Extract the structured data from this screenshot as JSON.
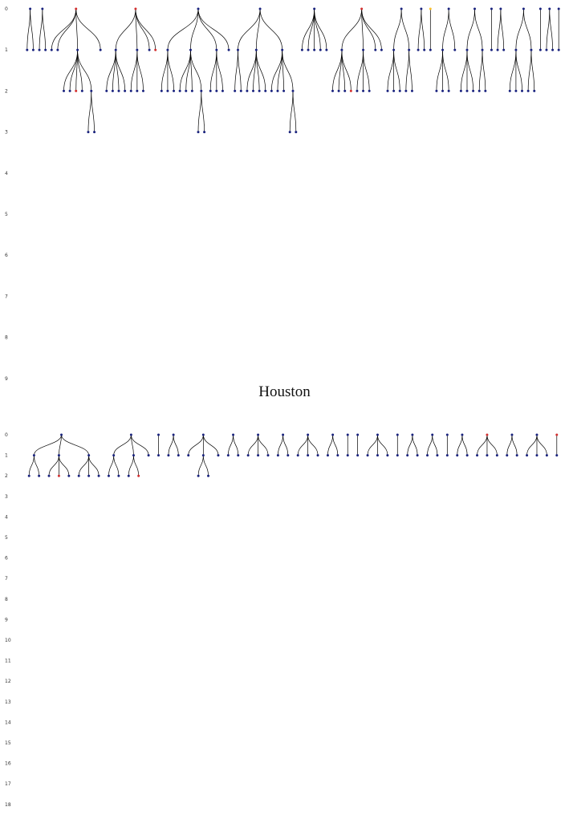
{
  "caption": "Houston",
  "colors": {
    "background": "#ffffff",
    "edge": "#000000",
    "node_default": "#1a237e",
    "node_red": "#d32f2f",
    "node_yellow": "#fbc02d",
    "node_green": "#2e7d32",
    "node_black": "#222222"
  },
  "top_panel": {
    "level_labels": [
      "0",
      "1",
      "2",
      "3",
      "4",
      "5",
      "6",
      "7",
      "8",
      "9"
    ],
    "trees": [
      {
        "c": [
          "n",
          [
            "n",
            "n"
          ]
        ]
      },
      {
        "c": [
          "n",
          [
            "n",
            "n"
          ]
        ]
      },
      {
        "c": [
          "r",
          [
            "n",
            "n",
            [
              "n",
              "n",
              "r",
              "n",
              [
                "n",
                "n"
              ]
            ],
            "n"
          ]
        ]
      },
      {
        "c": [
          "r",
          [
            [
              "n",
              "n",
              "n",
              "n"
            ],
            [
              "n",
              "n",
              "n"
            ],
            "n",
            "r"
          ]
        ]
      },
      {
        "c": [
          "n",
          [
            [
              "n",
              "n",
              "n"
            ],
            [
              "n",
              "n",
              "n",
              [
                "n",
                "n"
              ]
            ],
            [
              "n",
              [
                "n",
                "n",
                "n"
              ]
            ],
            "n"
          ]
        ]
      },
      {
        "c": [
          "n",
          [
            [
              "n",
              "n"
            ],
            [
              "n",
              "n",
              "n",
              "n"
            ],
            [
              "n",
              "n",
              "n",
              [
                "n",
                "n"
              ]
            ]
          ]
        ]
      },
      {
        "c": [
          "n",
          [
            "n",
            "n",
            "n",
            "n",
            "n"
          ]
        ]
      },
      {
        "c": [
          "r",
          [
            [
              "n",
              "n",
              "n",
              "r"
            ],
            [
              "n",
              "n",
              "n"
            ],
            "n",
            "n"
          ]
        ]
      },
      {
        "c": [
          "n",
          [
            [
              "n",
              "n",
              "n"
            ],
            [
              "n",
              "n"
            ]
          ]
        ]
      },
      {
        "c": [
          "n",
          [
            "n",
            "n"
          ]
        ]
      },
      {
        "c": [
          "y",
          [
            "n"
          ]
        ]
      },
      {
        "c": [
          "n",
          [
            [
              "n",
              "n",
              "n"
            ],
            "n"
          ]
        ]
      },
      {
        "c": [
          "n",
          [
            [
              "n",
              "n",
              "n"
            ],
            [
              "n",
              "n"
            ]
          ]
        ]
      },
      {
        "c": [
          "n",
          [
            "n"
          ]
        ]
      },
      {
        "c": [
          "n",
          [
            "n",
            "n"
          ]
        ]
      },
      {
        "c": [
          "n",
          [
            [
              "n",
              "n",
              "n"
            ],
            [
              "n",
              "n"
            ]
          ]
        ]
      },
      {
        "c": [
          "n",
          [
            "n"
          ]
        ]
      },
      {
        "c": [
          "n",
          [
            "n",
            "n"
          ]
        ]
      },
      {
        "c": [
          "n",
          [
            "n"
          ]
        ]
      }
    ]
  },
  "bottom_panel": {
    "level_labels": [
      "0",
      "1",
      "2",
      "3",
      "4",
      "5",
      "6",
      "7",
      "8",
      "9",
      "10",
      "11",
      "12",
      "13",
      "14",
      "15",
      "16",
      "17",
      "18"
    ],
    "trees": [
      {
        "c": [
          "n",
          [
            [
              "n",
              [
                "n",
                "n"
              ],
              [
                "r",
                "n"
              ]
            ],
            [
              "n",
              [
                "n",
                "r",
                "n"
              ]
            ],
            [
              "n",
              "n",
              "n"
            ]
          ]
        ]
      },
      {
        "c": [
          "n",
          [
            [
              "n",
              [
                "n",
                "n"
              ],
              "n"
            ],
            [
              "n",
              [
                "n",
                "r"
              ]
            ],
            "n"
          ]
        ]
      },
      {
        "c": [
          "n",
          [
            "n"
          ]
        ]
      },
      {
        "c": [
          "n",
          [
            "n",
            "n"
          ]
        ]
      },
      {
        "c": [
          "n",
          [
            "n",
            [
              "n",
              "n"
            ],
            "n"
          ]
        ]
      },
      {
        "c": [
          "n",
          [
            "n",
            "n"
          ]
        ]
      },
      {
        "c": [
          "n",
          [
            "n",
            "n",
            "n"
          ]
        ]
      },
      {
        "c": [
          "n",
          [
            "n",
            "n"
          ]
        ]
      },
      {
        "c": [
          "n",
          [
            "n",
            "n",
            "n"
          ]
        ]
      },
      {
        "c": [
          "n",
          [
            "n",
            "n"
          ]
        ]
      },
      {
        "c": [
          "n",
          [
            "n"
          ]
        ]
      },
      {
        "c": [
          "n",
          [
            "n"
          ]
        ]
      },
      {
        "c": [
          "n",
          [
            "n",
            "n",
            "n"
          ]
        ]
      },
      {
        "c": [
          "n",
          [
            "n"
          ]
        ]
      },
      {
        "c": [
          "n",
          [
            "n",
            "n"
          ]
        ]
      },
      {
        "c": [
          "n",
          [
            "n",
            "n"
          ]
        ]
      },
      {
        "c": [
          "n",
          [
            "n"
          ]
        ]
      },
      {
        "c": [
          "n",
          [
            "n",
            "n"
          ]
        ]
      },
      {
        "c": [
          "r",
          [
            "n",
            "n",
            "n"
          ]
        ]
      },
      {
        "c": [
          "n",
          [
            "n",
            "n"
          ]
        ]
      },
      {
        "c": [
          "n",
          [
            "n",
            "n",
            "n"
          ]
        ]
      },
      {
        "c": [
          "r",
          [
            "n"
          ]
        ]
      }
    ]
  }
}
